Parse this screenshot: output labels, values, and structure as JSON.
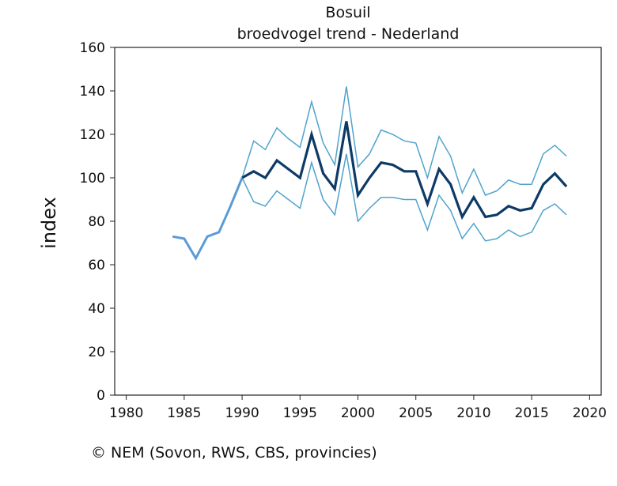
{
  "credit": "© NEM (Sovon, RWS, CBS, provincies)",
  "chart_data": {
    "type": "line",
    "title": "Bosuil",
    "subtitle": "broedvogel trend - Nederland",
    "xlabel": "",
    "ylabel": "index",
    "xlim": [
      1979,
      2021
    ],
    "ylim": [
      0,
      160
    ],
    "xticks": [
      1980,
      1985,
      1990,
      1995,
      2000,
      2005,
      2010,
      2015,
      2020
    ],
    "yticks": [
      0,
      20,
      40,
      60,
      80,
      100,
      120,
      140,
      160
    ],
    "grid": false,
    "colors": {
      "early": "#5b9bd5",
      "index": "#0d3a66",
      "bounds": "#4fa3cc"
    },
    "series": [
      {
        "key": "early",
        "x": [
          1984,
          1985,
          1986,
          1987,
          1988,
          1989,
          1990
        ],
        "y": [
          73,
          72,
          63,
          73,
          75,
          87,
          100
        ]
      },
      {
        "key": "index",
        "x": [
          1990,
          1991,
          1992,
          1993,
          1994,
          1995,
          1996,
          1997,
          1998,
          1999,
          2000,
          2001,
          2002,
          2003,
          2004,
          2005,
          2006,
          2007,
          2008,
          2009,
          2010,
          2011,
          2012,
          2013,
          2014,
          2015,
          2016,
          2017,
          2018
        ],
        "y": [
          100,
          103,
          100,
          108,
          104,
          100,
          120,
          102,
          95,
          126,
          92,
          100,
          107,
          106,
          103,
          103,
          88,
          104,
          97,
          82,
          91,
          82,
          83,
          87,
          85,
          86,
          97,
          102,
          96
        ]
      },
      {
        "key": "upper",
        "x": [
          1990,
          1991,
          1992,
          1993,
          1994,
          1995,
          1996,
          1997,
          1998,
          1999,
          2000,
          2001,
          2002,
          2003,
          2004,
          2005,
          2006,
          2007,
          2008,
          2009,
          2010,
          2011,
          2012,
          2013,
          2014,
          2015,
          2016,
          2017,
          2018
        ],
        "y": [
          100,
          117,
          113,
          123,
          118,
          114,
          135,
          116,
          106,
          142,
          105,
          111,
          122,
          120,
          117,
          116,
          100,
          119,
          110,
          93,
          104,
          92,
          94,
          99,
          97,
          97,
          111,
          115,
          110
        ]
      },
      {
        "key": "lower",
        "x": [
          1990,
          1991,
          1992,
          1993,
          1994,
          1995,
          1996,
          1997,
          1998,
          1999,
          2000,
          2001,
          2002,
          2003,
          2004,
          2005,
          2006,
          2007,
          2008,
          2009,
          2010,
          2011,
          2012,
          2013,
          2014,
          2015,
          2016,
          2017,
          2018
        ],
        "y": [
          100,
          89,
          87,
          94,
          90,
          86,
          107,
          90,
          83,
          111,
          80,
          86,
          91,
          91,
          90,
          90,
          76,
          92,
          85,
          72,
          79,
          71,
          72,
          76,
          73,
          75,
          85,
          88,
          83
        ]
      }
    ]
  }
}
